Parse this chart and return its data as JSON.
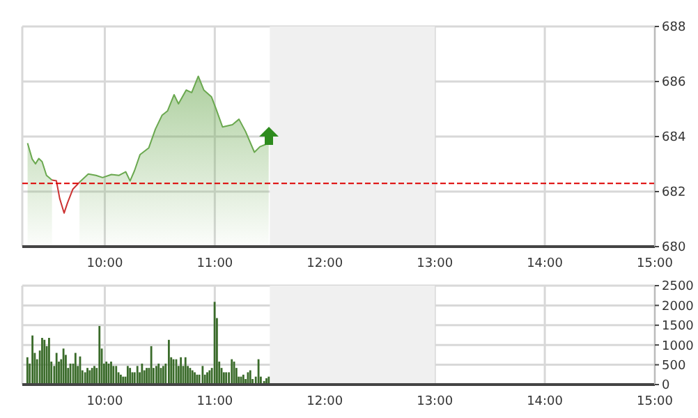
{
  "chart_data": [
    {
      "type": "area",
      "x": [
        9.298,
        9.34,
        9.37,
        9.4,
        9.43,
        9.47,
        9.52,
        9.56,
        9.59,
        9.63,
        9.66,
        9.71,
        9.77,
        9.85,
        9.92,
        9.98,
        10.06,
        10.13,
        10.19,
        10.23,
        10.27,
        10.32,
        10.4,
        10.46,
        10.52,
        10.57,
        10.63,
        10.67,
        10.74,
        10.79,
        10.85,
        10.9,
        10.97,
        11.01,
        11.07,
        11.16,
        11.22,
        11.28,
        11.36,
        11.41,
        11.49
      ],
      "series": [
        {
          "color": "#6aa84f",
          "values": [
            683.76,
            683.18,
            683.01,
            683.2,
            683.09,
            682.59,
            682.42,
            null,
            null,
            null,
            null,
            null,
            682.34,
            682.64,
            682.59,
            682.51,
            682.62,
            682.59,
            682.72,
            682.39,
            682.76,
            683.34,
            683.59,
            684.27,
            684.77,
            684.93,
            685.52,
            685.19,
            685.69,
            685.6,
            686.19,
            685.69,
            685.44,
            685.02,
            684.35,
            684.43,
            684.63,
            684.18,
            683.43,
            683.63,
            683.76
          ]
        },
        {
          "type": "line",
          "color": "#cc3333",
          "values": [
            null,
            null,
            null,
            null,
            null,
            null,
            682.42,
            682.39,
            681.75,
            681.22,
            681.58,
            682.09,
            682.34,
            null,
            null,
            null,
            null,
            null,
            null,
            null,
            null,
            null,
            null,
            null,
            null,
            null,
            null,
            null,
            null,
            null,
            null,
            null,
            null,
            null,
            null,
            null,
            null,
            null,
            null,
            null,
            null
          ]
        }
      ],
      "xlim": [
        9.25,
        15
      ],
      "xticks": [
        {
          "value": 10,
          "label": "10:00"
        },
        {
          "value": 11,
          "label": "11:00"
        },
        {
          "value": 12,
          "label": "12:00"
        },
        {
          "value": 13,
          "label": "13:00"
        },
        {
          "value": 14,
          "label": "14:00"
        },
        {
          "value": 15,
          "label": "15:00"
        }
      ],
      "ylim": [
        680,
        688
      ],
      "yticks": [
        680,
        682,
        684,
        686,
        688
      ],
      "grid": true,
      "ref_lines": [
        {
          "axis": "y",
          "value": 682.3,
          "color": "#dd0000",
          "line_style": "dashed"
        }
      ],
      "bands": [
        {
          "axis": "x",
          "from": 11.5,
          "to": 13,
          "color": "#f0f0f0"
        }
      ]
    },
    {
      "type": "bar",
      "color": "#3a6b2a",
      "x": [
        9.298,
        9.319,
        9.344,
        9.365,
        9.386,
        9.411,
        9.432,
        9.453,
        9.474,
        9.495,
        9.516,
        9.542,
        9.563,
        9.584,
        9.605,
        9.626,
        9.647,
        9.668,
        9.689,
        9.714,
        9.735,
        9.756,
        9.777,
        9.798,
        9.823,
        9.844,
        9.865,
        9.886,
        9.907,
        9.928,
        9.953,
        9.974,
        9.995,
        10.016,
        10.037,
        10.059,
        10.08,
        10.105,
        10.126,
        10.147,
        10.168,
        10.189,
        10.21,
        10.231,
        10.252,
        10.273,
        10.298,
        10.319,
        10.34,
        10.361,
        10.382,
        10.403,
        10.424,
        10.445,
        10.47,
        10.491,
        10.512,
        10.533,
        10.555,
        10.584,
        10.605,
        10.626,
        10.651,
        10.672,
        10.693,
        10.714,
        10.735,
        10.756,
        10.777,
        10.798,
        10.819,
        10.84,
        10.861,
        10.891,
        10.912,
        10.933,
        10.954,
        10.975,
        11.0,
        11.021,
        11.042,
        11.063,
        11.084,
        11.105,
        11.13,
        11.156,
        11.177,
        11.198,
        11.219,
        11.24,
        11.261,
        11.282,
        11.303,
        11.324,
        11.345,
        11.374,
        11.399,
        11.42,
        11.45,
        11.471,
        11.492
      ],
      "values": [
        690,
        530,
        1240,
        800,
        640,
        860,
        1180,
        1130,
        970,
        1180,
        580,
        470,
        800,
        580,
        640,
        910,
        750,
        420,
        530,
        530,
        800,
        470,
        710,
        360,
        310,
        420,
        360,
        420,
        470,
        420,
        1480,
        910,
        530,
        580,
        530,
        580,
        470,
        470,
        310,
        250,
        200,
        200,
        470,
        420,
        310,
        310,
        470,
        310,
        530,
        360,
        420,
        420,
        970,
        420,
        470,
        530,
        420,
        470,
        530,
        1130,
        690,
        640,
        640,
        470,
        690,
        470,
        690,
        470,
        420,
        360,
        310,
        250,
        250,
        470,
        250,
        310,
        360,
        420,
        2090,
        1680,
        580,
        420,
        310,
        310,
        310,
        640,
        580,
        420,
        200,
        200,
        250,
        140,
        310,
        360,
        140,
        200,
        640,
        200,
        90,
        160,
        200
      ],
      "xlim": [
        9.25,
        15
      ],
      "xticks": [
        {
          "value": 10,
          "label": "10:00"
        },
        {
          "value": 11,
          "label": "11:00"
        },
        {
          "value": 12,
          "label": "12:00"
        },
        {
          "value": 13,
          "label": "13:00"
        },
        {
          "value": 14,
          "label": "14:00"
        },
        {
          "value": 15,
          "label": "15:00"
        }
      ],
      "ylim": [
        0,
        2500
      ],
      "yticks": [
        0,
        500,
        1000,
        1500,
        2000,
        2500
      ],
      "grid": true,
      "bands": [
        {
          "axis": "x",
          "from": 11.5,
          "to": 13,
          "color": "#f0f0f0"
        }
      ]
    }
  ]
}
